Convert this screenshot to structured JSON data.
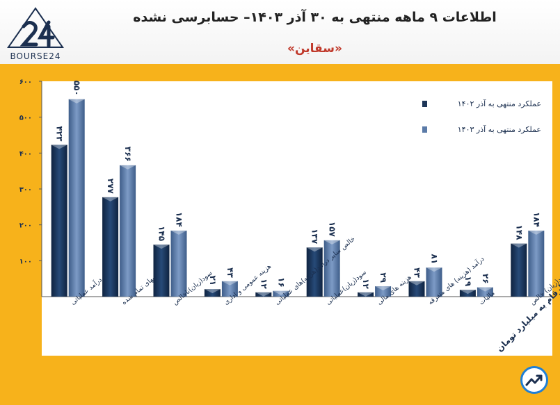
{
  "header": {
    "logo_text": "BOURSE24",
    "title": "اطلاعات ۹ ماهه منتهی به ۳۰ آذر ۱۴۰۳– حسابرسی نشده",
    "subtitle": "«سقاین»",
    "footnote": "ارقام به میلیارد تومان"
  },
  "colors": {
    "frame": "#f7b21b",
    "plot_bg": "#ffffff",
    "series_1402": "#1d3557",
    "series_1403": "#5b7ba8",
    "text": "#1b2f4f"
  },
  "chart_data": {
    "type": "bar",
    "categories": [
      "درآمد عملیاتی",
      "بهای تمام شده",
      "سود(زیان)ناخالص",
      "هزینه عمومی و اداری",
      "خالص سایر درآمد(هزینه)های عملیاتی",
      "سود(زیان)عملیاتی",
      "هزینه های مالی",
      "درآمد (هزینه) های متفرقه",
      "مالیات",
      "سود(زیان) خالص"
    ],
    "series": [
      {
        "name": "عملکرد منتهی به آذر ۱۴۰۲",
        "values": [
          423,
          277,
          145,
          21,
          12,
          137,
          12,
          43,
          19,
          148
        ],
        "labels": [
          "۴۲۳",
          "۲۷۷",
          "۱۴۵",
          "۲۱",
          "۱۲",
          "۱۳۷",
          "۱۲",
          "۴۳",
          "۱۹",
          "۱۴۸"
        ]
      },
      {
        "name": "عملکرد منتهی به آذر ۱۴۰۳",
        "values": [
          550,
          366,
          184,
          43,
          16,
          157,
          29,
          81,
          26,
          184
        ],
        "labels": [
          "۵۵۰",
          "۳۶۶",
          "۱۸۴",
          "۴۳",
          "۱۶",
          "۱۵۷",
          "۲۹",
          "۸۱",
          "۲۶",
          "۱۸۴"
        ]
      }
    ],
    "yticks": [
      100,
      200,
      300,
      400,
      500,
      600
    ],
    "ytick_labels": [
      "۱۰۰",
      "۲۰۰",
      "۳۰۰",
      "۴۰۰",
      "۵۰۰",
      "۶۰۰"
    ],
    "ylim": [
      0,
      600
    ],
    "legend_position": "top-right",
    "grid": false
  }
}
